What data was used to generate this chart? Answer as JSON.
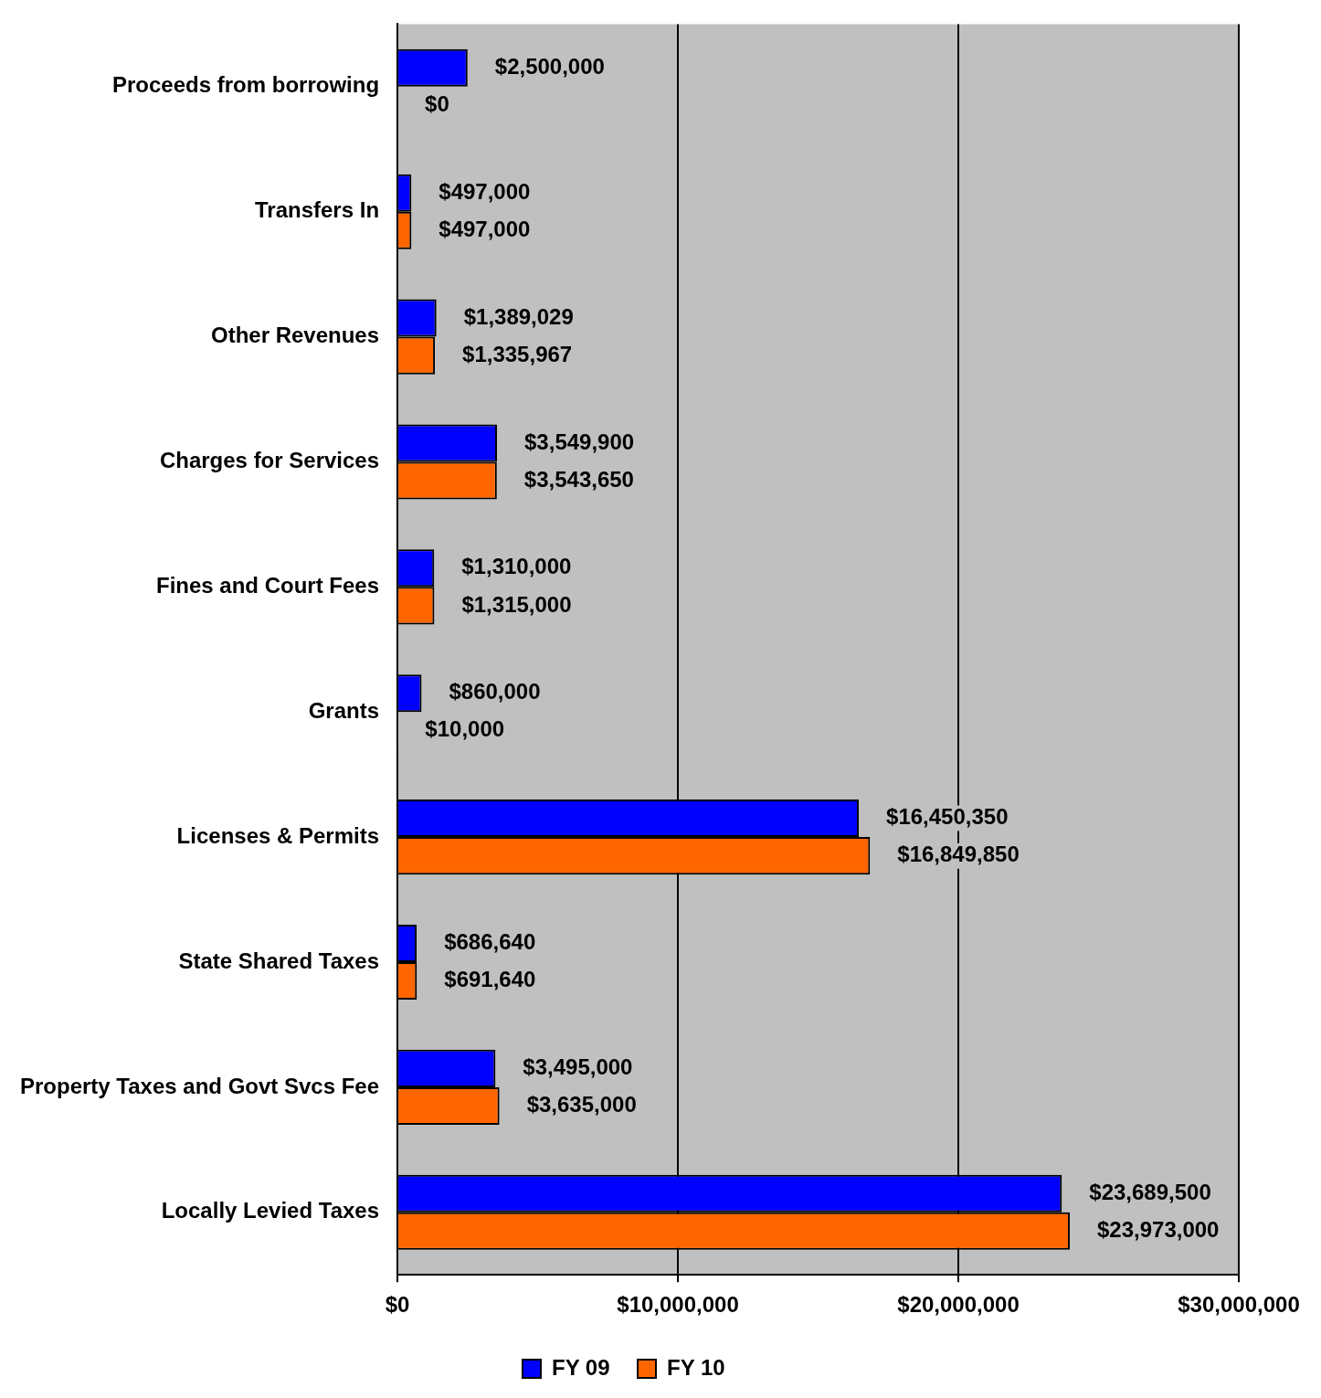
{
  "chart_data": {
    "type": "bar",
    "orientation": "horizontal",
    "categories": [
      "Proceeds from borrowing",
      "Transfers In",
      "Other Revenues",
      "Charges for Services",
      "Fines and Court Fees",
      "Grants",
      "Licenses & Permits",
      "State Shared Taxes",
      "Property Taxes and Govt Svcs Fee",
      "Locally Levied Taxes"
    ],
    "series": [
      {
        "name": "FY 09",
        "color": "#0000ff",
        "values": [
          2500000,
          497000,
          1389029,
          3549900,
          1310000,
          860000,
          16450350,
          686640,
          3495000,
          23689500
        ],
        "value_labels": [
          "$2,500,000",
          "$497,000",
          "$1,389,029",
          "$3,549,900",
          "$1,310,000",
          "$860,000",
          "$16,450,350",
          "$686,640",
          "$3,495,000",
          "$23,689,500"
        ]
      },
      {
        "name": "FY 10",
        "color": "#ff6600",
        "values": [
          0,
          497000,
          1335967,
          3543650,
          1315000,
          10000,
          16849850,
          691640,
          3635000,
          23973000
        ],
        "value_labels": [
          "$0",
          "$497,000",
          "$1,335,967",
          "$3,543,650",
          "$1,315,000",
          "$10,000",
          "$16,849,850",
          "$691,640",
          "$3,635,000",
          "$23,973,000"
        ]
      }
    ],
    "xlim": [
      0,
      30000000
    ],
    "xticks": [
      {
        "value": 0,
        "label": "$0"
      },
      {
        "value": 10000000,
        "label": "$10,000,000"
      },
      {
        "value": 20000000,
        "label": "$20,000,000"
      },
      {
        "value": 30000000,
        "label": "$30,000,000"
      }
    ],
    "grid": "x",
    "legend": "bottom"
  }
}
